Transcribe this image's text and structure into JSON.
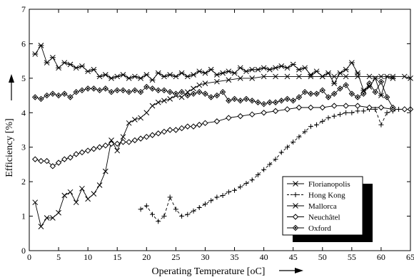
{
  "chart_data": {
    "type": "line",
    "xlabel": "Operating Temperature [oC]",
    "ylabel": "Efficiency [%]",
    "xlim": [
      0,
      65
    ],
    "ylim": [
      0,
      7
    ],
    "x_ticks": [
      0,
      5,
      10,
      15,
      20,
      25,
      30,
      35,
      40,
      45,
      50,
      55,
      60,
      65
    ],
    "y_ticks": [
      0,
      1,
      2,
      3,
      4,
      5,
      6,
      7
    ],
    "grid": false,
    "legend_position": "bottom-right",
    "series": [
      {
        "name": "Florianopolis",
        "marker": "x",
        "dash": "solid",
        "x": [
          1,
          2,
          3,
          4,
          5,
          6,
          7,
          8,
          9,
          10,
          11,
          12,
          13,
          14,
          15,
          16,
          17,
          18,
          19,
          20,
          21,
          22,
          23,
          24,
          25,
          26,
          27,
          28,
          29,
          30,
          32,
          34,
          36,
          38,
          40,
          42,
          44,
          46,
          48,
          50,
          52,
          54,
          56,
          58,
          60,
          62,
          64,
          65
        ],
        "y": [
          1.4,
          0.7,
          0.95,
          0.95,
          1.1,
          1.6,
          1.7,
          1.4,
          1.8,
          1.5,
          1.65,
          1.9,
          2.3,
          3.2,
          2.9,
          3.3,
          3.7,
          3.8,
          3.85,
          4.0,
          4.2,
          4.3,
          4.35,
          4.4,
          4.5,
          4.45,
          4.6,
          4.7,
          4.8,
          4.85,
          4.9,
          4.95,
          5.0,
          5.0,
          5.05,
          5.05,
          5.05,
          5.05,
          5.05,
          5.05,
          5.05,
          5.05,
          5.05,
          5.05,
          5.05,
          5.05,
          5.05,
          5.0
        ]
      },
      {
        "name": "Hong Kong",
        "marker": "+",
        "dash": "dashed",
        "x": [
          19,
          20,
          21,
          22,
          23,
          24,
          25,
          26,
          27,
          28,
          29,
          30,
          31,
          32,
          33,
          34,
          35,
          36,
          37,
          38,
          39,
          40,
          41,
          42,
          43,
          44,
          45,
          46,
          47,
          48,
          49,
          50,
          51,
          52,
          53,
          54,
          55,
          56,
          57,
          58,
          59,
          60,
          61,
          62,
          63,
          64,
          65
        ],
        "y": [
          1.2,
          1.3,
          1.05,
          0.85,
          1.0,
          1.55,
          1.2,
          1.0,
          1.05,
          1.15,
          1.25,
          1.35,
          1.45,
          1.55,
          1.6,
          1.7,
          1.75,
          1.85,
          1.95,
          2.05,
          2.2,
          2.35,
          2.5,
          2.65,
          2.85,
          3.0,
          3.15,
          3.3,
          3.45,
          3.6,
          3.65,
          3.75,
          3.85,
          3.9,
          3.95,
          4.0,
          4.0,
          4.05,
          4.05,
          4.1,
          4.1,
          3.65,
          4.0,
          4.05,
          4.1,
          4.1,
          4.1
        ]
      },
      {
        "name": "Mallorca",
        "marker": "star",
        "dash": "solid",
        "x": [
          1,
          2,
          3,
          4,
          5,
          6,
          7,
          8,
          9,
          10,
          11,
          12,
          13,
          14,
          15,
          16,
          17,
          18,
          19,
          20,
          21,
          22,
          23,
          24,
          25,
          26,
          27,
          28,
          29,
          30,
          31,
          32,
          33,
          34,
          35,
          36,
          37,
          38,
          39,
          40,
          41,
          42,
          43,
          44,
          45,
          46,
          47,
          48,
          49,
          50,
          51,
          52,
          53,
          54,
          55,
          56,
          57,
          58,
          59,
          60,
          61,
          62
        ],
        "y": [
          5.7,
          5.95,
          5.45,
          5.6,
          5.3,
          5.45,
          5.4,
          5.3,
          5.35,
          5.2,
          5.25,
          5.05,
          5.1,
          5.0,
          5.05,
          5.1,
          5.0,
          5.05,
          5.0,
          5.1,
          4.95,
          5.15,
          5.05,
          5.1,
          5.05,
          5.15,
          5.05,
          5.1,
          5.2,
          5.15,
          5.25,
          5.1,
          5.15,
          5.2,
          5.15,
          5.3,
          5.2,
          5.25,
          5.25,
          5.3,
          5.25,
          5.3,
          5.35,
          5.3,
          5.4,
          5.25,
          5.3,
          5.1,
          5.2,
          5.05,
          5.15,
          4.85,
          5.15,
          5.25,
          5.45,
          5.15,
          4.65,
          4.75,
          5.0,
          4.5,
          5.05,
          5.0
        ]
      },
      {
        "name": "Neuchâtel",
        "marker": "diamond-open",
        "dash": "solid",
        "x": [
          1,
          2,
          3,
          4,
          5,
          6,
          7,
          8,
          9,
          10,
          11,
          12,
          13,
          14,
          15,
          16,
          17,
          18,
          19,
          20,
          21,
          22,
          23,
          24,
          25,
          26,
          27,
          28,
          29,
          30,
          32,
          34,
          36,
          38,
          40,
          42,
          44,
          46,
          48,
          50,
          52,
          54,
          56,
          58,
          60,
          62,
          64,
          65
        ],
        "y": [
          2.65,
          2.6,
          2.6,
          2.45,
          2.55,
          2.65,
          2.7,
          2.8,
          2.85,
          2.9,
          2.95,
          3.0,
          3.05,
          3.1,
          3.1,
          3.15,
          3.15,
          3.2,
          3.25,
          3.3,
          3.35,
          3.4,
          3.45,
          3.5,
          3.5,
          3.55,
          3.6,
          3.6,
          3.65,
          3.7,
          3.75,
          3.85,
          3.9,
          3.95,
          4.0,
          4.05,
          4.1,
          4.15,
          4.15,
          4.15,
          4.2,
          4.2,
          4.2,
          4.15,
          4.15,
          4.1,
          4.1,
          4.1
        ]
      },
      {
        "name": "Oxford",
        "marker": "diamond-dot",
        "dash": "solid",
        "x": [
          1,
          2,
          3,
          4,
          5,
          6,
          7,
          8,
          9,
          10,
          11,
          12,
          13,
          14,
          15,
          16,
          17,
          18,
          19,
          20,
          21,
          22,
          23,
          24,
          25,
          26,
          27,
          28,
          29,
          30,
          31,
          32,
          33,
          34,
          35,
          36,
          37,
          38,
          39,
          40,
          41,
          42,
          43,
          44,
          45,
          46,
          47,
          48,
          49,
          50,
          51,
          52,
          53,
          54,
          55,
          56,
          57,
          58,
          59,
          60,
          61,
          62
        ],
        "y": [
          4.45,
          4.4,
          4.5,
          4.55,
          4.5,
          4.55,
          4.45,
          4.6,
          4.65,
          4.7,
          4.7,
          4.65,
          4.7,
          4.6,
          4.65,
          4.65,
          4.6,
          4.65,
          4.6,
          4.75,
          4.7,
          4.65,
          4.65,
          4.6,
          4.55,
          4.6,
          4.5,
          4.55,
          4.6,
          4.55,
          4.45,
          4.5,
          4.6,
          4.35,
          4.4,
          4.35,
          4.4,
          4.35,
          4.3,
          4.25,
          4.3,
          4.3,
          4.35,
          4.4,
          4.35,
          4.45,
          4.6,
          4.55,
          4.55,
          4.65,
          4.45,
          4.55,
          4.7,
          4.8,
          4.55,
          4.45,
          4.55,
          4.85,
          4.6,
          4.9,
          4.45,
          4.15
        ]
      }
    ]
  }
}
